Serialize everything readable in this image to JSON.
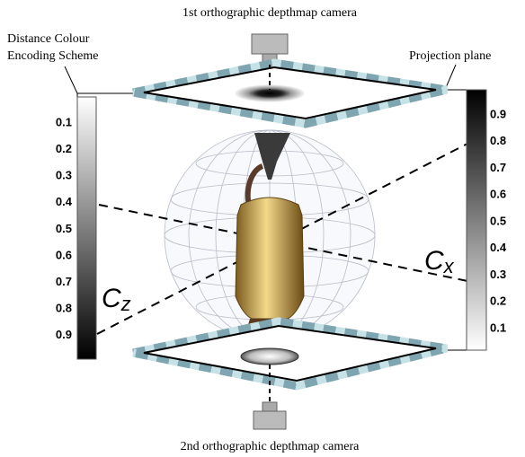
{
  "top_caption": "1st orthographic depthmap camera",
  "bottom_caption": "2nd orthographic depthmap camera",
  "legend_title": [
    "Distance Colour",
    "Encoding Scheme"
  ],
  "plane_label": "Projection plane",
  "left_scale": [
    0.1,
    0.2,
    0.3,
    0.4,
    0.5,
    0.6,
    0.7,
    0.8,
    0.9
  ],
  "right_scale": [
    0.9,
    0.8,
    0.7,
    0.6,
    0.5,
    0.4,
    0.3,
    0.2,
    0.1
  ],
  "axis_z": {
    "main": "C",
    "sub": "z"
  },
  "axis_x": {
    "main": "C",
    "sub": "x"
  }
}
